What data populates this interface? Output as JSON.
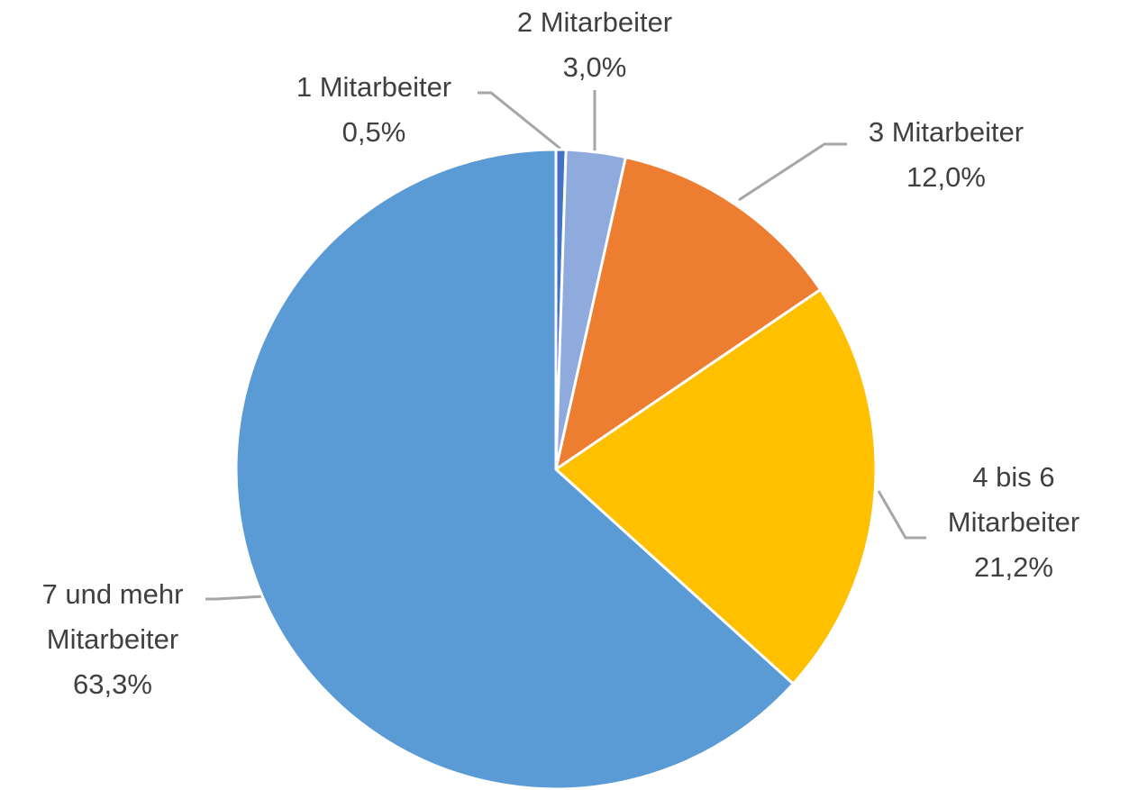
{
  "chart_data": {
    "type": "pie",
    "categories": [
      "1 Mitarbeiter",
      "2 Mitarbeiter",
      "3 Mitarbeiter",
      "4 bis 6 Mitarbeiter",
      "7 und mehr Mitarbeiter"
    ],
    "values": [
      0.5,
      3.0,
      12.0,
      21.2,
      63.3
    ],
    "value_labels": [
      "0,5%",
      "3,0%",
      "12,0%",
      "21,2%",
      "63,3%"
    ],
    "colors": [
      "#4472c4",
      "#8faadc",
      "#ed7d31",
      "#ffc000",
      "#5b9bd5"
    ]
  }
}
